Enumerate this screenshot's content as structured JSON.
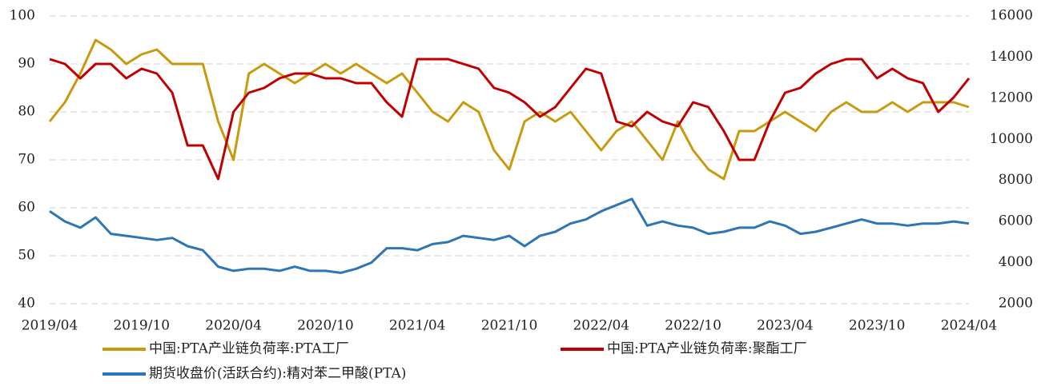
{
  "chart_data": {
    "type": "line",
    "categories": [
      "2019/04",
      null,
      null,
      null,
      null,
      null,
      "2019/10",
      null,
      null,
      null,
      null,
      null,
      "2020/04",
      null,
      null,
      null,
      null,
      null,
      "2020/10",
      null,
      null,
      null,
      null,
      null,
      "2021/04",
      null,
      null,
      null,
      null,
      null,
      "2021/10",
      null,
      null,
      null,
      null,
      null,
      "2022/04",
      null,
      null,
      null,
      null,
      null,
      "2022/10",
      null,
      null,
      null,
      null,
      null,
      "2023/04",
      null,
      null,
      null,
      null,
      null,
      "2023/10",
      null,
      null,
      null,
      null,
      null,
      "2024/04"
    ],
    "series": [
      {
        "name": "中国:PTA产业链负荷率:PTA工厂",
        "color": "#c89a0e",
        "values": [
          78,
          82,
          88,
          95,
          93,
          90,
          92,
          93,
          90,
          90,
          90,
          78,
          70,
          88,
          90,
          88,
          86,
          88,
          90,
          88,
          90,
          88,
          86,
          88,
          84,
          80,
          78,
          82,
          80,
          72,
          68,
          78,
          80,
          78,
          80,
          76,
          72,
          76,
          78,
          74,
          70,
          78,
          72,
          68,
          66,
          76,
          76,
          78,
          80,
          78,
          76,
          80,
          82,
          80,
          80,
          82,
          80,
          82,
          82,
          82,
          81
        ]
      },
      {
        "name": "中国:PTA产业链负荷率:聚酯工厂",
        "color": "#c00000",
        "values": [
          91,
          90,
          87,
          90,
          90,
          87,
          89,
          88,
          84,
          73,
          73,
          66,
          80,
          84,
          85,
          87,
          88,
          88,
          87,
          87,
          86,
          86,
          82,
          79,
          91,
          91,
          91,
          90,
          89,
          85,
          84,
          82,
          79,
          81,
          85,
          89,
          88,
          78,
          77,
          80,
          78,
          77,
          82,
          81,
          76,
          70,
          70,
          78,
          84,
          85,
          88,
          90,
          91,
          91,
          87,
          89,
          87,
          86,
          80,
          83,
          87
        ]
      },
      {
        "name": "期货收盘价(活跃合约):精对苯二甲酸(PTA)",
        "color": "#2e75b6",
        "axis": "y2",
        "values": [
          6500,
          6000,
          5700,
          6200,
          5400,
          5300,
          5200,
          5100,
          5200,
          4800,
          4600,
          3800,
          3600,
          3700,
          3700,
          3600,
          3800,
          3600,
          3600,
          3500,
          3700,
          4000,
          4700,
          4700,
          4600,
          4900,
          5000,
          5300,
          5200,
          5100,
          5300,
          4800,
          5300,
          5500,
          5900,
          6100,
          6500,
          6800,
          7100,
          5800,
          6000,
          5800,
          5700,
          5400,
          5500,
          5700,
          5700,
          6000,
          5800,
          5400,
          5500,
          5700,
          5900,
          6100,
          5900,
          5900,
          5800,
          5900,
          5900,
          6000,
          5900
        ]
      }
    ],
    "ylim": [
      40,
      100
    ],
    "yticks": [
      40,
      50,
      60,
      70,
      80,
      90,
      100
    ],
    "y2lim": [
      2000,
      16000
    ],
    "y2ticks": [
      2000,
      4000,
      6000,
      8000,
      10000,
      12000,
      14000,
      16000
    ],
    "grid": true
  }
}
